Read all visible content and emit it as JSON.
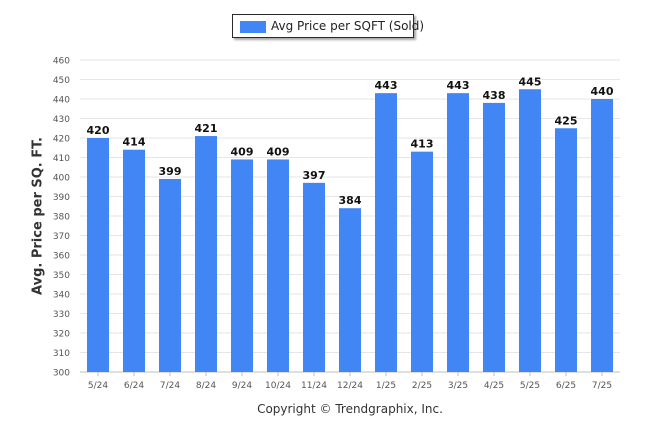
{
  "chart_data": {
    "type": "bar",
    "ylabel": "Avg. Price per SQ. FT.",
    "ylim": [
      300,
      460
    ],
    "ytick_step": 10,
    "grid": true,
    "legend_position": "top-center",
    "categories": [
      "5/24",
      "6/24",
      "7/24",
      "8/24",
      "9/24",
      "10/24",
      "11/24",
      "12/24",
      "1/25",
      "2/25",
      "3/25",
      "4/25",
      "5/25",
      "6/25",
      "7/25"
    ],
    "series": [
      {
        "name": "Avg Price per SQFT (Sold)",
        "color": "#4285f4",
        "values": [
          420,
          414,
          399,
          421,
          409,
          409,
          397,
          384,
          443,
          413,
          443,
          438,
          445,
          425,
          440
        ]
      }
    ]
  },
  "legend": {
    "label": "Avg Price per SQFT (Sold)"
  },
  "footer": {
    "copyright": "Copyright © Trendgraphix, Inc."
  },
  "colors": {
    "bar": "#4285f4",
    "grid": "#e6e6e6",
    "axis_text": "#555555"
  }
}
